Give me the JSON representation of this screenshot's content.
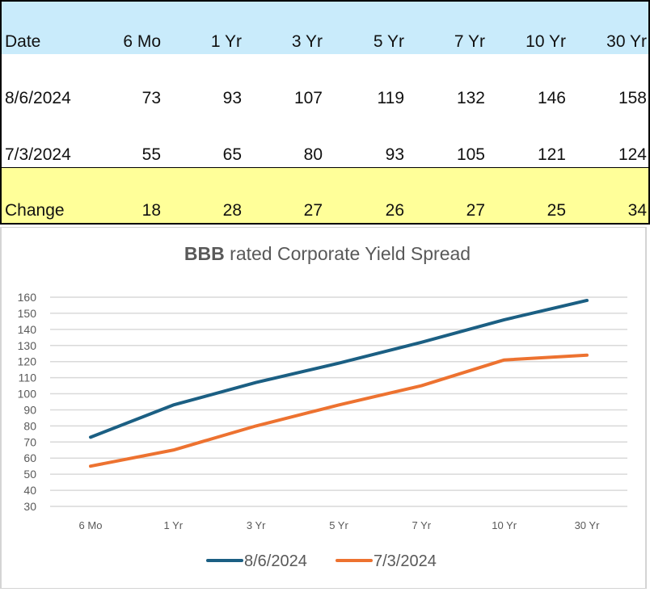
{
  "table": {
    "headers": [
      "Date",
      "6 Mo",
      "1 Yr",
      "3 Yr",
      "5 Yr",
      "7 Yr",
      "10 Yr",
      "30 Yr"
    ],
    "rows": [
      {
        "label": "8/6/2024",
        "values": [
          "73",
          "93",
          "107",
          "119",
          "132",
          "146",
          "158"
        ]
      },
      {
        "label": "7/3/2024",
        "values": [
          "55",
          "65",
          "80",
          "93",
          "105",
          "121",
          "124"
        ]
      }
    ],
    "change": {
      "label": "Change",
      "values": [
        "18",
        "28",
        "27",
        "26",
        "27",
        "25",
        "34"
      ]
    },
    "colors": {
      "header_bg": "#c9ebfb",
      "change_bg": "#ffff99"
    }
  },
  "chart_data": {
    "type": "line",
    "title_bold": "BBB",
    "title_rest": " rated Corporate Yield Spread",
    "categories": [
      "6 Mo",
      "1 Yr",
      "3 Yr",
      "5 Yr",
      "7 Yr",
      "10 Yr",
      "30 Yr"
    ],
    "series": [
      {
        "name": "8/6/2024",
        "values": [
          73,
          93,
          107,
          119,
          132,
          146,
          158
        ],
        "color": "#1b5f83"
      },
      {
        "name": "7/3/2024",
        "values": [
          55,
          65,
          80,
          93,
          105,
          121,
          124
        ],
        "color": "#ed7230"
      }
    ],
    "yticks": [
      "160",
      "150",
      "140",
      "130",
      "120",
      "110",
      "100",
      "90",
      "80",
      "70",
      "60",
      "50",
      "40",
      "30"
    ],
    "ylim": [
      30,
      160
    ],
    "ystep": 10,
    "grid": true,
    "legend": "bottom",
    "xlabel": "",
    "ylabel": ""
  }
}
